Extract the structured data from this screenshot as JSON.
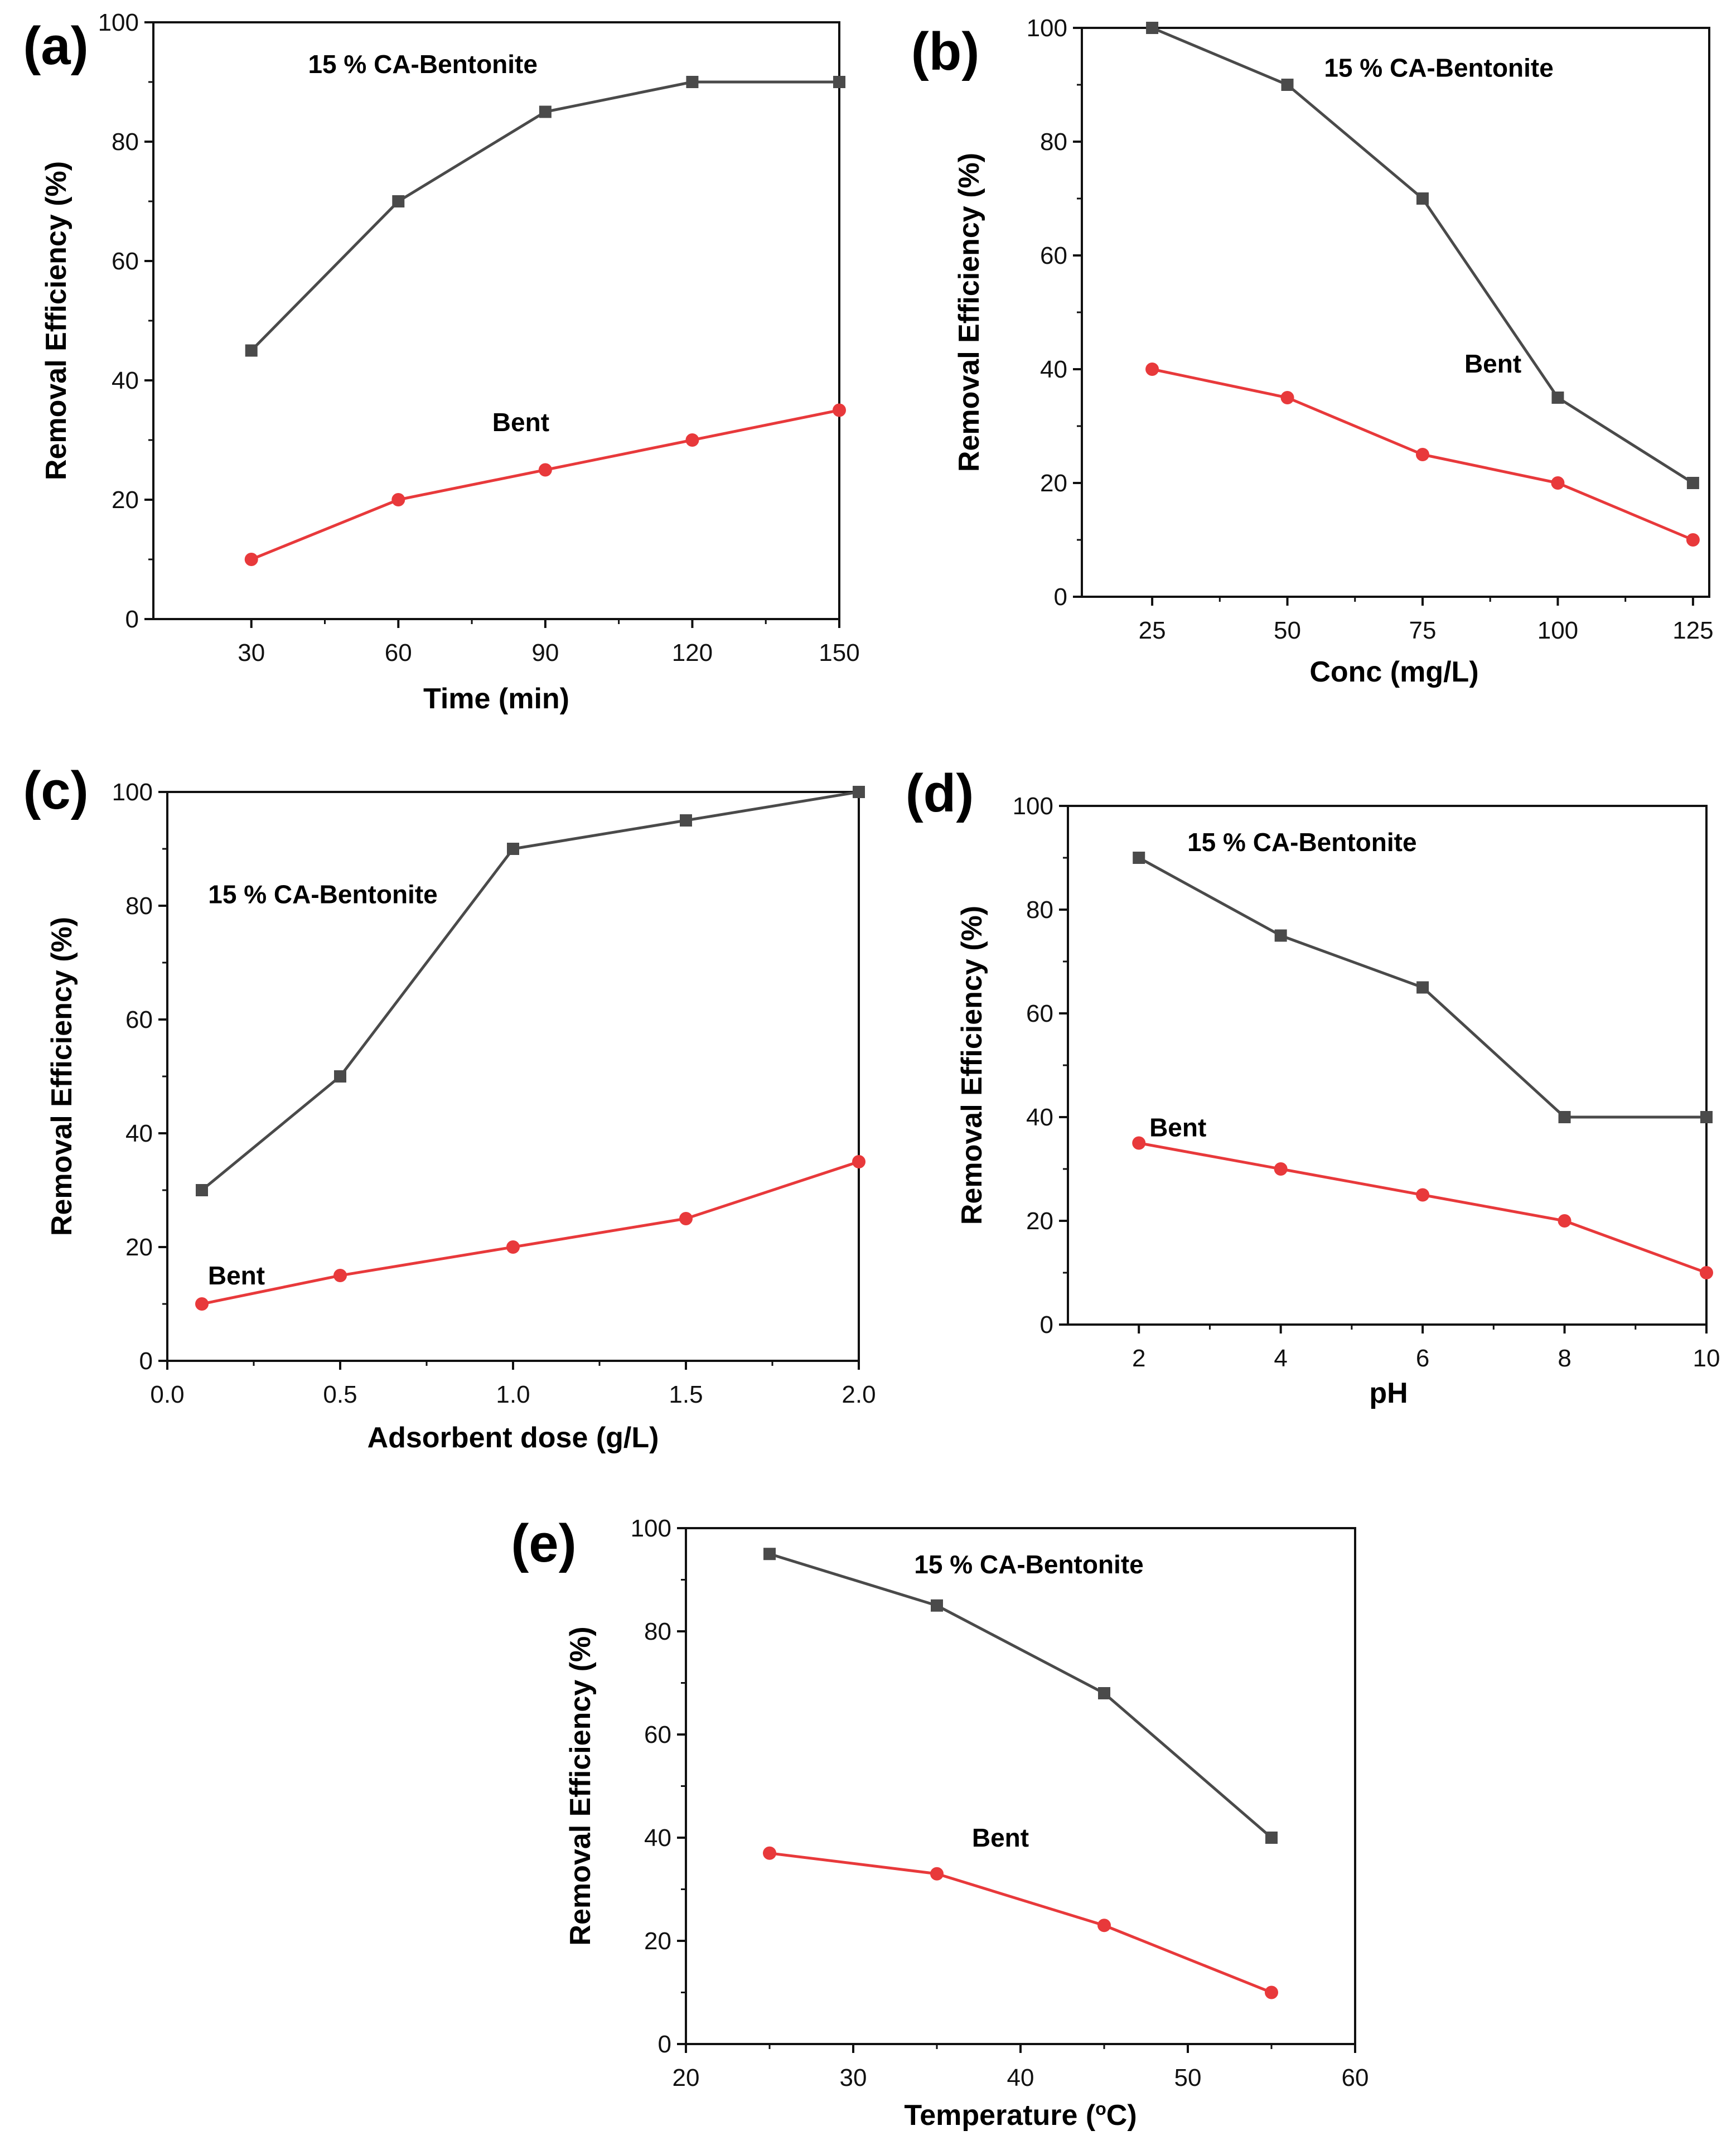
{
  "colors": {
    "composite": "#4a4a4a",
    "bent": "#e8393b",
    "axis": "#111111"
  },
  "chart_data": [
    {
      "panel_label": "(a)",
      "type": "line",
      "xlabel": "Time (min)",
      "ylabel": "Removal Efficiency (%)",
      "xlim": [
        10,
        150
      ],
      "ylim": [
        0,
        100
      ],
      "xticks": [
        30,
        60,
        90,
        120,
        150
      ],
      "yticks": [
        0,
        20,
        40,
        60,
        80,
        100
      ],
      "grid": false,
      "annotations": [
        {
          "text": "15 % CA-Bentonite",
          "x": 65,
          "y": 93
        },
        {
          "text": "Bent",
          "x": 85,
          "y": 33
        }
      ],
      "series": [
        {
          "label_key": "composite",
          "marker": "square",
          "x": [
            30,
            60,
            90,
            120,
            150
          ],
          "y": [
            45,
            70,
            85,
            90,
            90
          ]
        },
        {
          "label_key": "bent",
          "marker": "circle",
          "x": [
            30,
            60,
            90,
            120,
            150
          ],
          "y": [
            10,
            20,
            25,
            30,
            35
          ]
        }
      ]
    },
    {
      "panel_label": "(b)",
      "type": "line",
      "xlabel": "Conc (mg/L)",
      "ylabel": "Removal Efficiency (%)",
      "xlim": [
        12,
        128
      ],
      "ylim": [
        0,
        100
      ],
      "xticks": [
        25,
        50,
        75,
        100,
        125
      ],
      "yticks": [
        0,
        20,
        40,
        60,
        80,
        100
      ],
      "grid": false,
      "annotations": [
        {
          "text": "15 % CA-Bentonite",
          "x": 78,
          "y": 93
        },
        {
          "text": "Bent",
          "x": 88,
          "y": 41
        }
      ],
      "series": [
        {
          "label_key": "composite",
          "marker": "square",
          "x": [
            25,
            50,
            75,
            100,
            125
          ],
          "y": [
            100,
            90,
            70,
            35,
            20
          ]
        },
        {
          "label_key": "bent",
          "marker": "circle",
          "x": [
            25,
            50,
            75,
            100,
            125
          ],
          "y": [
            40,
            35,
            25,
            20,
            10
          ]
        }
      ]
    },
    {
      "panel_label": "(c)",
      "type": "line",
      "xlabel": "Adsorbent dose (g/L)",
      "ylabel": "Removal Efficiency (%)",
      "xlim": [
        0.0,
        2.0
      ],
      "ylim": [
        0,
        100
      ],
      "xticks": [
        "0.0",
        "0.5",
        "1.0",
        "1.5",
        "2.0"
      ],
      "yticks": [
        0,
        20,
        40,
        60,
        80,
        100
      ],
      "grid": false,
      "annotations": [
        {
          "text": "15 % CA-Bentonite",
          "x": 0.45,
          "y": 82
        },
        {
          "text": "Bent",
          "x": 0.2,
          "y": 15
        }
      ],
      "series": [
        {
          "label_key": "composite",
          "marker": "square",
          "x": [
            0.1,
            0.5,
            1.0,
            1.5,
            2.0
          ],
          "y": [
            30,
            50,
            90,
            95,
            100
          ]
        },
        {
          "label_key": "bent",
          "marker": "circle",
          "x": [
            0.1,
            0.5,
            1.0,
            1.5,
            2.0
          ],
          "y": [
            10,
            15,
            20,
            25,
            35
          ]
        }
      ]
    },
    {
      "panel_label": "(d)",
      "type": "line",
      "xlabel": "pH",
      "ylabel": "Removal Efficiency (%)",
      "xlim": [
        1,
        10
      ],
      "ylim": [
        0,
        100
      ],
      "xticks": [
        2,
        4,
        6,
        8,
        10
      ],
      "yticks": [
        0,
        20,
        40,
        60,
        80,
        100
      ],
      "grid": false,
      "annotations": [
        {
          "text": "15 % CA-Bentonite",
          "x": 4.3,
          "y": 93
        },
        {
          "text": "Bent",
          "x": 2.55,
          "y": 38
        }
      ],
      "series": [
        {
          "label_key": "composite",
          "marker": "square",
          "x": [
            2,
            4,
            6,
            8,
            10
          ],
          "y": [
            90,
            75,
            65,
            40,
            40
          ]
        },
        {
          "label_key": "bent",
          "marker": "circle",
          "x": [
            2,
            4,
            6,
            8,
            10
          ],
          "y": [
            35,
            30,
            25,
            20,
            10
          ]
        }
      ]
    },
    {
      "panel_label": "(e)",
      "type": "line",
      "xlabel": "Temperature (",
      "xlabel_sup": "o",
      "xlabel_tail": "C)",
      "ylabel": "Removal Efficiency (%)",
      "xlim": [
        20,
        60
      ],
      "ylim": [
        0,
        100
      ],
      "xticks": [
        20,
        30,
        40,
        50,
        60
      ],
      "yticks": [
        0,
        20,
        40,
        60,
        80,
        100
      ],
      "grid": false,
      "annotations": [
        {
          "text": "15 % CA-Bentonite",
          "x": 40.5,
          "y": 93
        },
        {
          "text": "Bent",
          "x": 38.8,
          "y": 40
        }
      ],
      "series": [
        {
          "label_key": "composite",
          "marker": "square",
          "x": [
            25,
            35,
            45,
            55
          ],
          "y": [
            95,
            85,
            68,
            40
          ]
        },
        {
          "label_key": "bent",
          "marker": "circle",
          "x": [
            25,
            35,
            45,
            55
          ],
          "y": [
            37,
            33,
            23,
            10
          ]
        }
      ]
    }
  ]
}
